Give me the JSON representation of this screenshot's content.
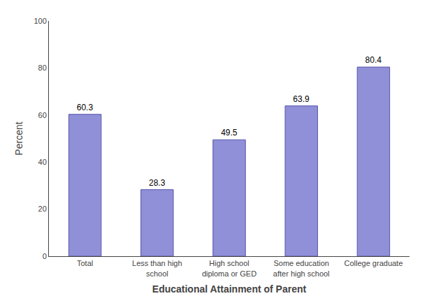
{
  "chart_data": {
    "type": "bar",
    "categories": [
      "Total",
      "Less than high\nschool",
      "High school\ndiploma or GED",
      "Some education\nafter high school",
      "College graduate"
    ],
    "values": [
      60.3,
      28.3,
      49.5,
      63.9,
      80.4
    ],
    "color": "#9090d8",
    "xlabel": "Educational Attainment of Parent",
    "ylabel": "Percent",
    "ylim": [
      0,
      100
    ],
    "yticks": [
      0,
      20,
      40,
      60,
      80,
      100
    ],
    "grid": false,
    "data_labels": true
  }
}
